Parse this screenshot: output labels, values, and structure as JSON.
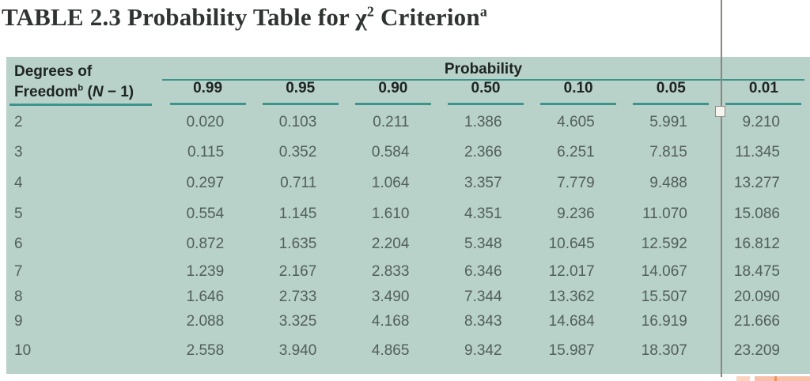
{
  "title": {
    "text_before_chi": "TABLE 2.3 Probability Table for ",
    "chi": "χ",
    "chi_exponent": "2",
    "text_after_chi": " Criterion",
    "footnote_marker": "a"
  },
  "table": {
    "row_header": {
      "line1": "Degrees of",
      "line2_word": "Freedom",
      "line2_marker": "b",
      "line2_open": " (",
      "line2_variable": "N",
      "line2_rest": " − 1)"
    },
    "column_group_header": "Probability",
    "columns": [
      "0.99",
      "0.95",
      "0.90",
      "0.50",
      "0.10",
      "0.05",
      "0.01"
    ],
    "rows": [
      {
        "df": "2",
        "values": [
          "0.020",
          "0.103",
          "0.211",
          "1.386",
          "4.605",
          "5.991",
          "9.210"
        ]
      },
      {
        "df": "3",
        "values": [
          "0.115",
          "0.352",
          "0.584",
          "2.366",
          "6.251",
          "7.815",
          "11.345"
        ]
      },
      {
        "df": "4",
        "values": [
          "0.297",
          "0.711",
          "1.064",
          "3.357",
          "7.779",
          "9.488",
          "13.277"
        ]
      },
      {
        "df": "5",
        "values": [
          "0.554",
          "1.145",
          "1.610",
          "4.351",
          "9.236",
          "11.070",
          "15.086"
        ]
      },
      {
        "df": "6",
        "values": [
          "0.872",
          "1.635",
          "2.204",
          "5.348",
          "10.645",
          "12.592",
          "16.812"
        ]
      },
      {
        "df": "7",
        "values": [
          "1.239",
          "2.167",
          "2.833",
          "6.346",
          "12.017",
          "14.067",
          "18.475"
        ]
      },
      {
        "df": "8",
        "values": [
          "1.646",
          "2.733",
          "3.490",
          "7.344",
          "13.362",
          "15.507",
          "20.090"
        ]
      },
      {
        "df": "9",
        "values": [
          "2.088",
          "3.325",
          "4.168",
          "8.343",
          "14.684",
          "16.919",
          "21.666"
        ]
      },
      {
        "df": "10",
        "values": [
          "2.558",
          "3.940",
          "4.865",
          "9.342",
          "15.987",
          "18.307",
          "23.209"
        ]
      }
    ]
  },
  "overlay": {
    "guide": "vertical-guide-line",
    "handle_icon": "square-drag-handle"
  },
  "colors": {
    "table_background": "#b8d1c9",
    "rule": "#3d948b",
    "number_text": "#515f5a",
    "header_text": "#1d2421",
    "title_text": "#2f3431",
    "guide_line": "#8a8583",
    "highlight": "#f8c0a8"
  }
}
